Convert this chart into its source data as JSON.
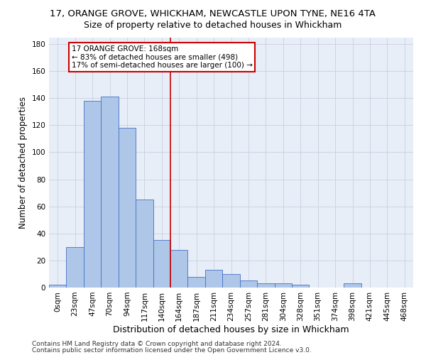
{
  "title": "17, ORANGE GROVE, WHICKHAM, NEWCASTLE UPON TYNE, NE16 4TA",
  "subtitle": "Size of property relative to detached houses in Whickham",
  "xlabel": "Distribution of detached houses by size in Whickham",
  "ylabel": "Number of detached properties",
  "bar_labels": [
    "0sqm",
    "23sqm",
    "47sqm",
    "70sqm",
    "94sqm",
    "117sqm",
    "140sqm",
    "164sqm",
    "187sqm",
    "211sqm",
    "234sqm",
    "257sqm",
    "281sqm",
    "304sqm",
    "328sqm",
    "351sqm",
    "374sqm",
    "398sqm",
    "421sqm",
    "445sqm",
    "468sqm"
  ],
  "bar_values": [
    2,
    30,
    138,
    141,
    118,
    65,
    35,
    28,
    8,
    13,
    10,
    5,
    3,
    3,
    2,
    0,
    0,
    3,
    0,
    0,
    0
  ],
  "bar_color": "#aec6e8",
  "bar_edge_color": "#4472c4",
  "background_color": "#e8eef8",
  "grid_color": "#c8d0e0",
  "vline_color": "#cc0000",
  "annotation_text": "17 ORANGE GROVE: 168sqm\n← 83% of detached houses are smaller (498)\n17% of semi-detached houses are larger (100) →",
  "annotation_box_color": "#cc0000",
  "ylim": [
    0,
    185
  ],
  "yticks": [
    0,
    20,
    40,
    60,
    80,
    100,
    120,
    140,
    160,
    180
  ],
  "footer1": "Contains HM Land Registry data © Crown copyright and database right 2024.",
  "footer2": "Contains public sector information licensed under the Open Government Licence v3.0.",
  "title_fontsize": 9.5,
  "subtitle_fontsize": 9,
  "tick_fontsize": 7.5,
  "ylabel_fontsize": 8.5,
  "xlabel_fontsize": 9,
  "annotation_fontsize": 7.5,
  "footer_fontsize": 6.5
}
